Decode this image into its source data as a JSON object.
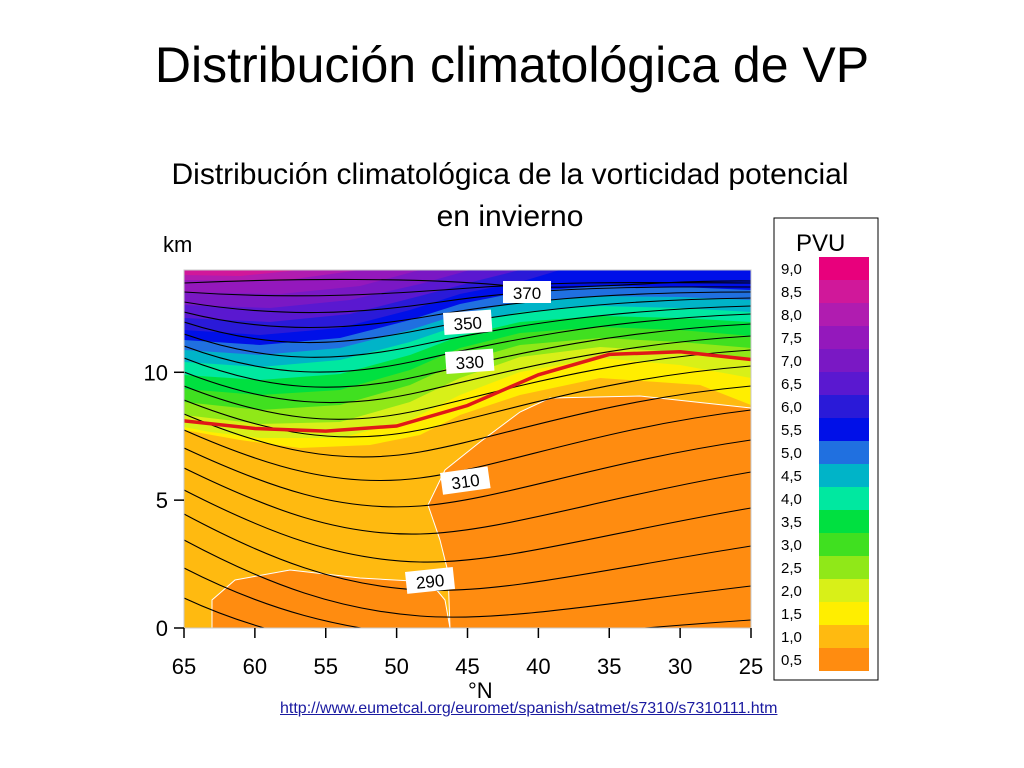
{
  "slide_title": "Distribución climatológica de VP",
  "figure_title": "Distribución climatológica de la vorticidad potencial en invierno",
  "source_link": "http://www.eumetcal.org/euromet/spanish/satmet/s7310/s7310111.htm",
  "chart_data": {
    "type": "heatmap",
    "title": "Distribución climatológica de la vorticidad potencial en invierno",
    "xlabel": "°N",
    "ylabel": "km",
    "x_ticks": [
      65,
      60,
      55,
      50,
      45,
      40,
      35,
      30,
      25
    ],
    "y_ticks": [
      0,
      5,
      10
    ],
    "xlim": [
      65,
      25
    ],
    "ylim": [
      0,
      14
    ],
    "grid": false,
    "colorbar": {
      "title": "PVU",
      "levels": [
        "9,0",
        "8,5",
        "8,0",
        "7,5",
        "7,0",
        "6,5",
        "6,0",
        "5,5",
        "5,0",
        "4,5",
        "4,0",
        "3,5",
        "3,0",
        "2,5",
        "2,0",
        "1,5",
        "1,0",
        "0,5"
      ],
      "colors": [
        "#e8007c",
        "#d0189a",
        "#b01cb0",
        "#9418bc",
        "#7a18c4",
        "#5a18d0",
        "#2a1ad8",
        "#0010e8",
        "#2070e0",
        "#00b4c8",
        "#00e8a0",
        "#00e040",
        "#40e020",
        "#90e818",
        "#d8f018",
        "#ffee00",
        "#ffba10",
        "#ff8c10"
      ]
    },
    "isentrope_labels": [
      "370",
      "350",
      "330",
      "310",
      "290"
    ],
    "tropopause": {
      "level_pvu": "2,0",
      "color": "#e01818",
      "points": [
        [
          65,
          8.1
        ],
        [
          60,
          7.8
        ],
        [
          55,
          7.7
        ],
        [
          50,
          7.9
        ],
        [
          45,
          8.7
        ],
        [
          40,
          9.9
        ],
        [
          35,
          10.7
        ],
        [
          30,
          10.8
        ],
        [
          25,
          10.5
        ]
      ]
    }
  }
}
